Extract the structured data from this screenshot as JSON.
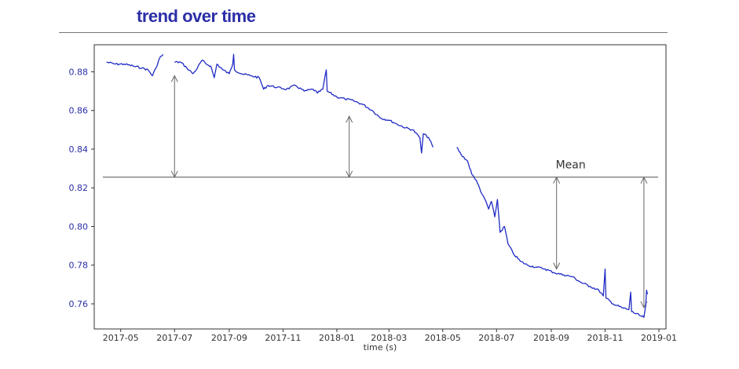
{
  "title": "trend over time",
  "colors": {
    "title": "#2b2fa6",
    "line": "#1f2bc4",
    "ytick": "#2b2fa6",
    "mean_line": "#555555",
    "arrow": "#666666"
  },
  "chart_data": {
    "type": "line",
    "title": "trend over time",
    "xlabel": "time (s)",
    "ylabel": "",
    "ylim": [
      0.747,
      0.894
    ],
    "xlim": [
      "2017-04-01",
      "2019-01-09"
    ],
    "yticks": [
      "0.76",
      "0.78",
      "0.80",
      "0.82",
      "0.84",
      "0.86",
      "0.88"
    ],
    "xticks": [
      "2017-05",
      "2017-07",
      "2017-09",
      "2017-11",
      "2018-01",
      "2018-03",
      "2018-05",
      "2018-07",
      "2018-09",
      "2018-11",
      "2019-01"
    ],
    "grid": false,
    "mean": 0.8255,
    "annotation": "Mean",
    "series": [
      {
        "values": [
          {
            "x": "2017-04-15",
            "y": 0.885
          },
          {
            "x": "2017-04-25",
            "y": 0.884
          },
          {
            "x": "2017-05-05",
            "y": 0.884
          },
          {
            "x": "2017-05-15",
            "y": 0.883
          },
          {
            "x": "2017-05-25",
            "y": 0.882
          },
          {
            "x": "2017-06-01",
            "y": 0.881
          },
          {
            "x": "2017-06-06",
            "y": 0.878
          },
          {
            "x": "2017-06-10",
            "y": 0.882
          },
          {
            "x": "2017-06-14",
            "y": 0.887
          },
          {
            "x": "2017-06-18",
            "y": 0.889
          },
          {
            "x": "2017-06-19",
            "y": null
          },
          {
            "x": "2017-07-01",
            "y": 0.885
          },
          {
            "x": "2017-07-08",
            "y": 0.885
          },
          {
            "x": "2017-07-15",
            "y": 0.882
          },
          {
            "x": "2017-07-22",
            "y": 0.879
          },
          {
            "x": "2017-07-27",
            "y": 0.882
          },
          {
            "x": "2017-08-01",
            "y": 0.886
          },
          {
            "x": "2017-08-06",
            "y": 0.884
          },
          {
            "x": "2017-08-11",
            "y": 0.883
          },
          {
            "x": "2017-08-15",
            "y": 0.877
          },
          {
            "x": "2017-08-18",
            "y": 0.884
          },
          {
            "x": "2017-08-25",
            "y": 0.881
          },
          {
            "x": "2017-09-01",
            "y": 0.879
          },
          {
            "x": "2017-09-05",
            "y": 0.884
          },
          {
            "x": "2017-09-06",
            "y": 0.889
          },
          {
            "x": "2017-09-07",
            "y": 0.881
          },
          {
            "x": "2017-09-15",
            "y": 0.879
          },
          {
            "x": "2017-09-25",
            "y": 0.878
          },
          {
            "x": "2017-10-05",
            "y": 0.877
          },
          {
            "x": "2017-10-10",
            "y": 0.871
          },
          {
            "x": "2017-10-15",
            "y": 0.873
          },
          {
            "x": "2017-10-25",
            "y": 0.872
          },
          {
            "x": "2017-11-05",
            "y": 0.871
          },
          {
            "x": "2017-11-15",
            "y": 0.873
          },
          {
            "x": "2017-11-25",
            "y": 0.87
          },
          {
            "x": "2017-12-05",
            "y": 0.871
          },
          {
            "x": "2017-12-10",
            "y": 0.869
          },
          {
            "x": "2017-12-16",
            "y": 0.871
          },
          {
            "x": "2017-12-20",
            "y": 0.881
          },
          {
            "x": "2017-12-21",
            "y": 0.87
          },
          {
            "x": "2018-01-01",
            "y": 0.867
          },
          {
            "x": "2018-01-10",
            "y": 0.866
          },
          {
            "x": "2018-01-20",
            "y": 0.865
          },
          {
            "x": "2018-01-31",
            "y": 0.863
          },
          {
            "x": "2018-02-10",
            "y": 0.86
          },
          {
            "x": "2018-02-20",
            "y": 0.856
          },
          {
            "x": "2018-03-01",
            "y": 0.855
          },
          {
            "x": "2018-03-10",
            "y": 0.853
          },
          {
            "x": "2018-03-20",
            "y": 0.851
          },
          {
            "x": "2018-03-28",
            "y": 0.85
          },
          {
            "x": "2018-04-05",
            "y": 0.846
          },
          {
            "x": "2018-04-07",
            "y": 0.838
          },
          {
            "x": "2018-04-09",
            "y": 0.848
          },
          {
            "x": "2018-04-15",
            "y": 0.846
          },
          {
            "x": "2018-04-20",
            "y": 0.841
          },
          {
            "x": "2018-04-21",
            "y": null
          },
          {
            "x": "2018-05-17",
            "y": 0.841
          },
          {
            "x": "2018-05-22",
            "y": 0.837
          },
          {
            "x": "2018-05-29",
            "y": 0.834
          },
          {
            "x": "2018-06-03",
            "y": 0.827
          },
          {
            "x": "2018-06-08",
            "y": 0.824
          },
          {
            "x": "2018-06-13",
            "y": 0.818
          },
          {
            "x": "2018-06-19",
            "y": 0.813
          },
          {
            "x": "2018-06-22",
            "y": 0.809
          },
          {
            "x": "2018-06-25",
            "y": 0.813
          },
          {
            "x": "2018-06-29",
            "y": 0.805
          },
          {
            "x": "2018-07-02",
            "y": 0.814
          },
          {
            "x": "2018-07-05",
            "y": 0.797
          },
          {
            "x": "2018-07-10",
            "y": 0.8
          },
          {
            "x": "2018-07-14",
            "y": 0.791
          },
          {
            "x": "2018-07-20",
            "y": 0.786
          },
          {
            "x": "2018-07-28",
            "y": 0.782
          },
          {
            "x": "2018-08-05",
            "y": 0.78
          },
          {
            "x": "2018-08-15",
            "y": 0.779
          },
          {
            "x": "2018-08-25",
            "y": 0.778
          },
          {
            "x": "2018-09-05",
            "y": 0.776
          },
          {
            "x": "2018-09-15",
            "y": 0.775
          },
          {
            "x": "2018-09-25",
            "y": 0.774
          },
          {
            "x": "2018-10-05",
            "y": 0.771
          },
          {
            "x": "2018-10-15",
            "y": 0.769
          },
          {
            "x": "2018-10-25",
            "y": 0.767
          },
          {
            "x": "2018-10-30",
            "y": 0.764
          },
          {
            "x": "2018-11-01",
            "y": 0.778
          },
          {
            "x": "2018-11-02",
            "y": 0.763
          },
          {
            "x": "2018-11-10",
            "y": 0.76
          },
          {
            "x": "2018-11-20",
            "y": 0.758
          },
          {
            "x": "2018-11-28",
            "y": 0.757
          },
          {
            "x": "2018-11-30",
            "y": 0.766
          },
          {
            "x": "2018-12-01",
            "y": 0.756
          },
          {
            "x": "2018-12-10",
            "y": 0.754
          },
          {
            "x": "2018-12-15",
            "y": 0.753
          },
          {
            "x": "2018-12-17",
            "y": 0.759
          },
          {
            "x": "2018-12-18",
            "y": 0.767
          },
          {
            "x": "2018-12-19",
            "y": 0.765
          }
        ]
      }
    ],
    "arrows": [
      {
        "x": "2017-07-01",
        "from": 0.8255,
        "to": 0.878,
        "bidirectional": true
      },
      {
        "x": "2018-01-15",
        "from": 0.8255,
        "to": 0.857,
        "bidirectional": true
      },
      {
        "x": "2018-09-07",
        "from": 0.8255,
        "to": 0.778,
        "bidirectional": true
      },
      {
        "x": "2018-12-15",
        "from": 0.8255,
        "to": 0.758,
        "bidirectional": true
      }
    ]
  }
}
